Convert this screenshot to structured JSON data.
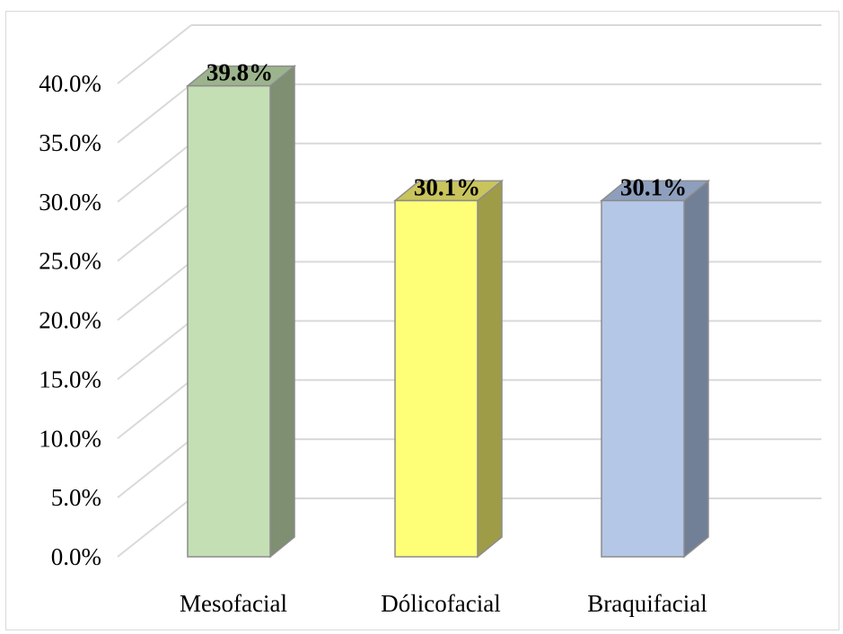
{
  "chart_data": {
    "type": "bar",
    "style": "3d-column",
    "categories": [
      "Mesofacial",
      "Dólicofacial",
      "Braquifacial"
    ],
    "values": [
      39.8,
      30.1,
      30.1
    ],
    "data_labels": [
      "39.8%",
      "30.1%",
      "30.1%"
    ],
    "ylim": [
      0,
      40
    ],
    "yticks": [
      "0.0%",
      "5.0%",
      "10.0%",
      "15.0%",
      "20.0%",
      "25.0%",
      "30.0%",
      "35.0%",
      "40.0%"
    ],
    "ytick_values": [
      0,
      5,
      10,
      15,
      20,
      25,
      30,
      35,
      40
    ],
    "grid": true,
    "legend": "none",
    "title": "",
    "xlabel": "",
    "ylabel": "",
    "colors": {
      "front": [
        "#c4dfb4",
        "#ffff77",
        "#b4c7e7"
      ],
      "top": [
        "#9cb48d",
        "#c9c45c",
        "#8e9fbe"
      ],
      "side": [
        "#7e8f72",
        "#9f9c48",
        "#718097"
      ],
      "gridline": "#d9d9d9",
      "bar_outline": "#8c8c8c"
    }
  }
}
